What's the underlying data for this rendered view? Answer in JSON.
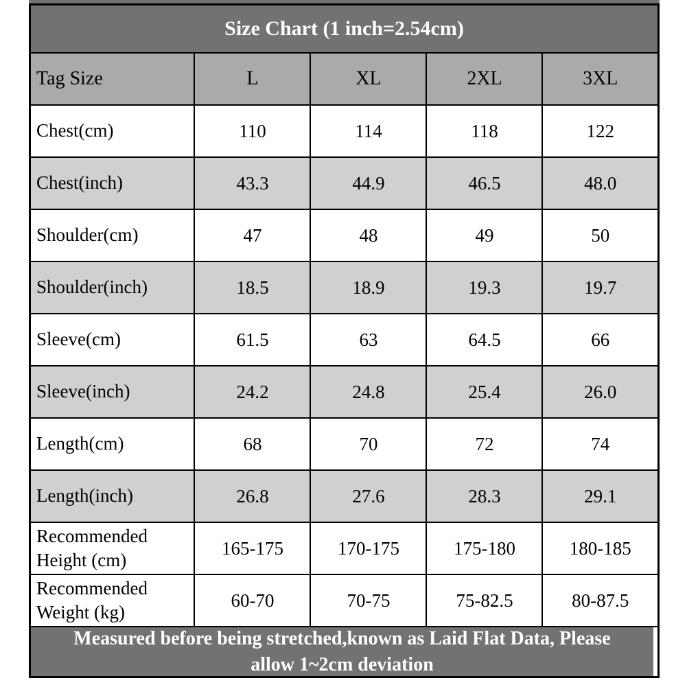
{
  "table": {
    "title": "Size Chart (1 inch=2.54cm)",
    "columns": [
      "Tag Size",
      "L",
      "XL",
      "2XL",
      "3XL"
    ],
    "rows": [
      {
        "label": "Chest(cm)",
        "values": [
          "110",
          "114",
          "118",
          "122"
        ]
      },
      {
        "label": "Chest(inch)",
        "values": [
          "43.3",
          "44.9",
          "46.5",
          "48.0"
        ]
      },
      {
        "label": "Shoulder(cm)",
        "values": [
          "47",
          "48",
          "49",
          "50"
        ]
      },
      {
        "label": "Shoulder(inch)",
        "values": [
          "18.5",
          "18.9",
          "19.3",
          "19.7"
        ]
      },
      {
        "label": "Sleeve(cm)",
        "values": [
          "61.5",
          "63",
          "64.5",
          "66"
        ]
      },
      {
        "label": "Sleeve(inch)",
        "values": [
          "24.2",
          "24.8",
          "25.4",
          "26.0"
        ]
      },
      {
        "label": "Length(cm)",
        "values": [
          "68",
          "70",
          "72",
          "74"
        ]
      },
      {
        "label": "Length(inch)",
        "values": [
          "26.8",
          "27.6",
          "28.3",
          "29.1"
        ]
      },
      {
        "label": "Recommended Height (cm)",
        "values": [
          "165-175",
          "170-175",
          "175-180",
          "180-185"
        ]
      },
      {
        "label": "Recommended Weight (kg)",
        "values": [
          "60-70",
          "70-75",
          "75-82.5",
          "80-87.5"
        ]
      }
    ],
    "footer_lines": [
      "Measured before being stretched,known as Laid Flat Data, Please",
      "allow 1~2cm deviation"
    ]
  },
  "colors": {
    "title_bg": "#747171",
    "title_text": "#ffffff",
    "header_bg": "#aca9a9",
    "shaded_row_bg": "#d1cfcf",
    "row_bg": "#ffffff",
    "footer_bg": "#747171",
    "footer_text": "#ffffff",
    "border": "#000000",
    "text": "#000000"
  },
  "chart_data": {
    "type": "table",
    "title": "Size Chart (1 inch=2.54cm)",
    "columns": [
      "Tag Size",
      "L",
      "XL",
      "2XL",
      "3XL"
    ],
    "rows": [
      [
        "Chest(cm)",
        110,
        114,
        118,
        122
      ],
      [
        "Chest(inch)",
        43.3,
        44.9,
        46.5,
        48.0
      ],
      [
        "Shoulder(cm)",
        47,
        48,
        49,
        50
      ],
      [
        "Shoulder(inch)",
        18.5,
        18.9,
        19.3,
        19.7
      ],
      [
        "Sleeve(cm)",
        61.5,
        63,
        64.5,
        66
      ],
      [
        "Sleeve(inch)",
        24.2,
        24.8,
        25.4,
        26.0
      ],
      [
        "Length(cm)",
        68,
        70,
        72,
        74
      ],
      [
        "Length(inch)",
        26.8,
        27.6,
        28.3,
        29.1
      ],
      [
        "Recommended Height (cm)",
        "165-175",
        "170-175",
        "175-180",
        "180-185"
      ],
      [
        "Recommended Weight (kg)",
        "60-70",
        "70-75",
        "75-82.5",
        "80-87.5"
      ]
    ],
    "note": "Measured before being stretched,known as Laid Flat Data, Please allow 1~2cm deviation"
  }
}
